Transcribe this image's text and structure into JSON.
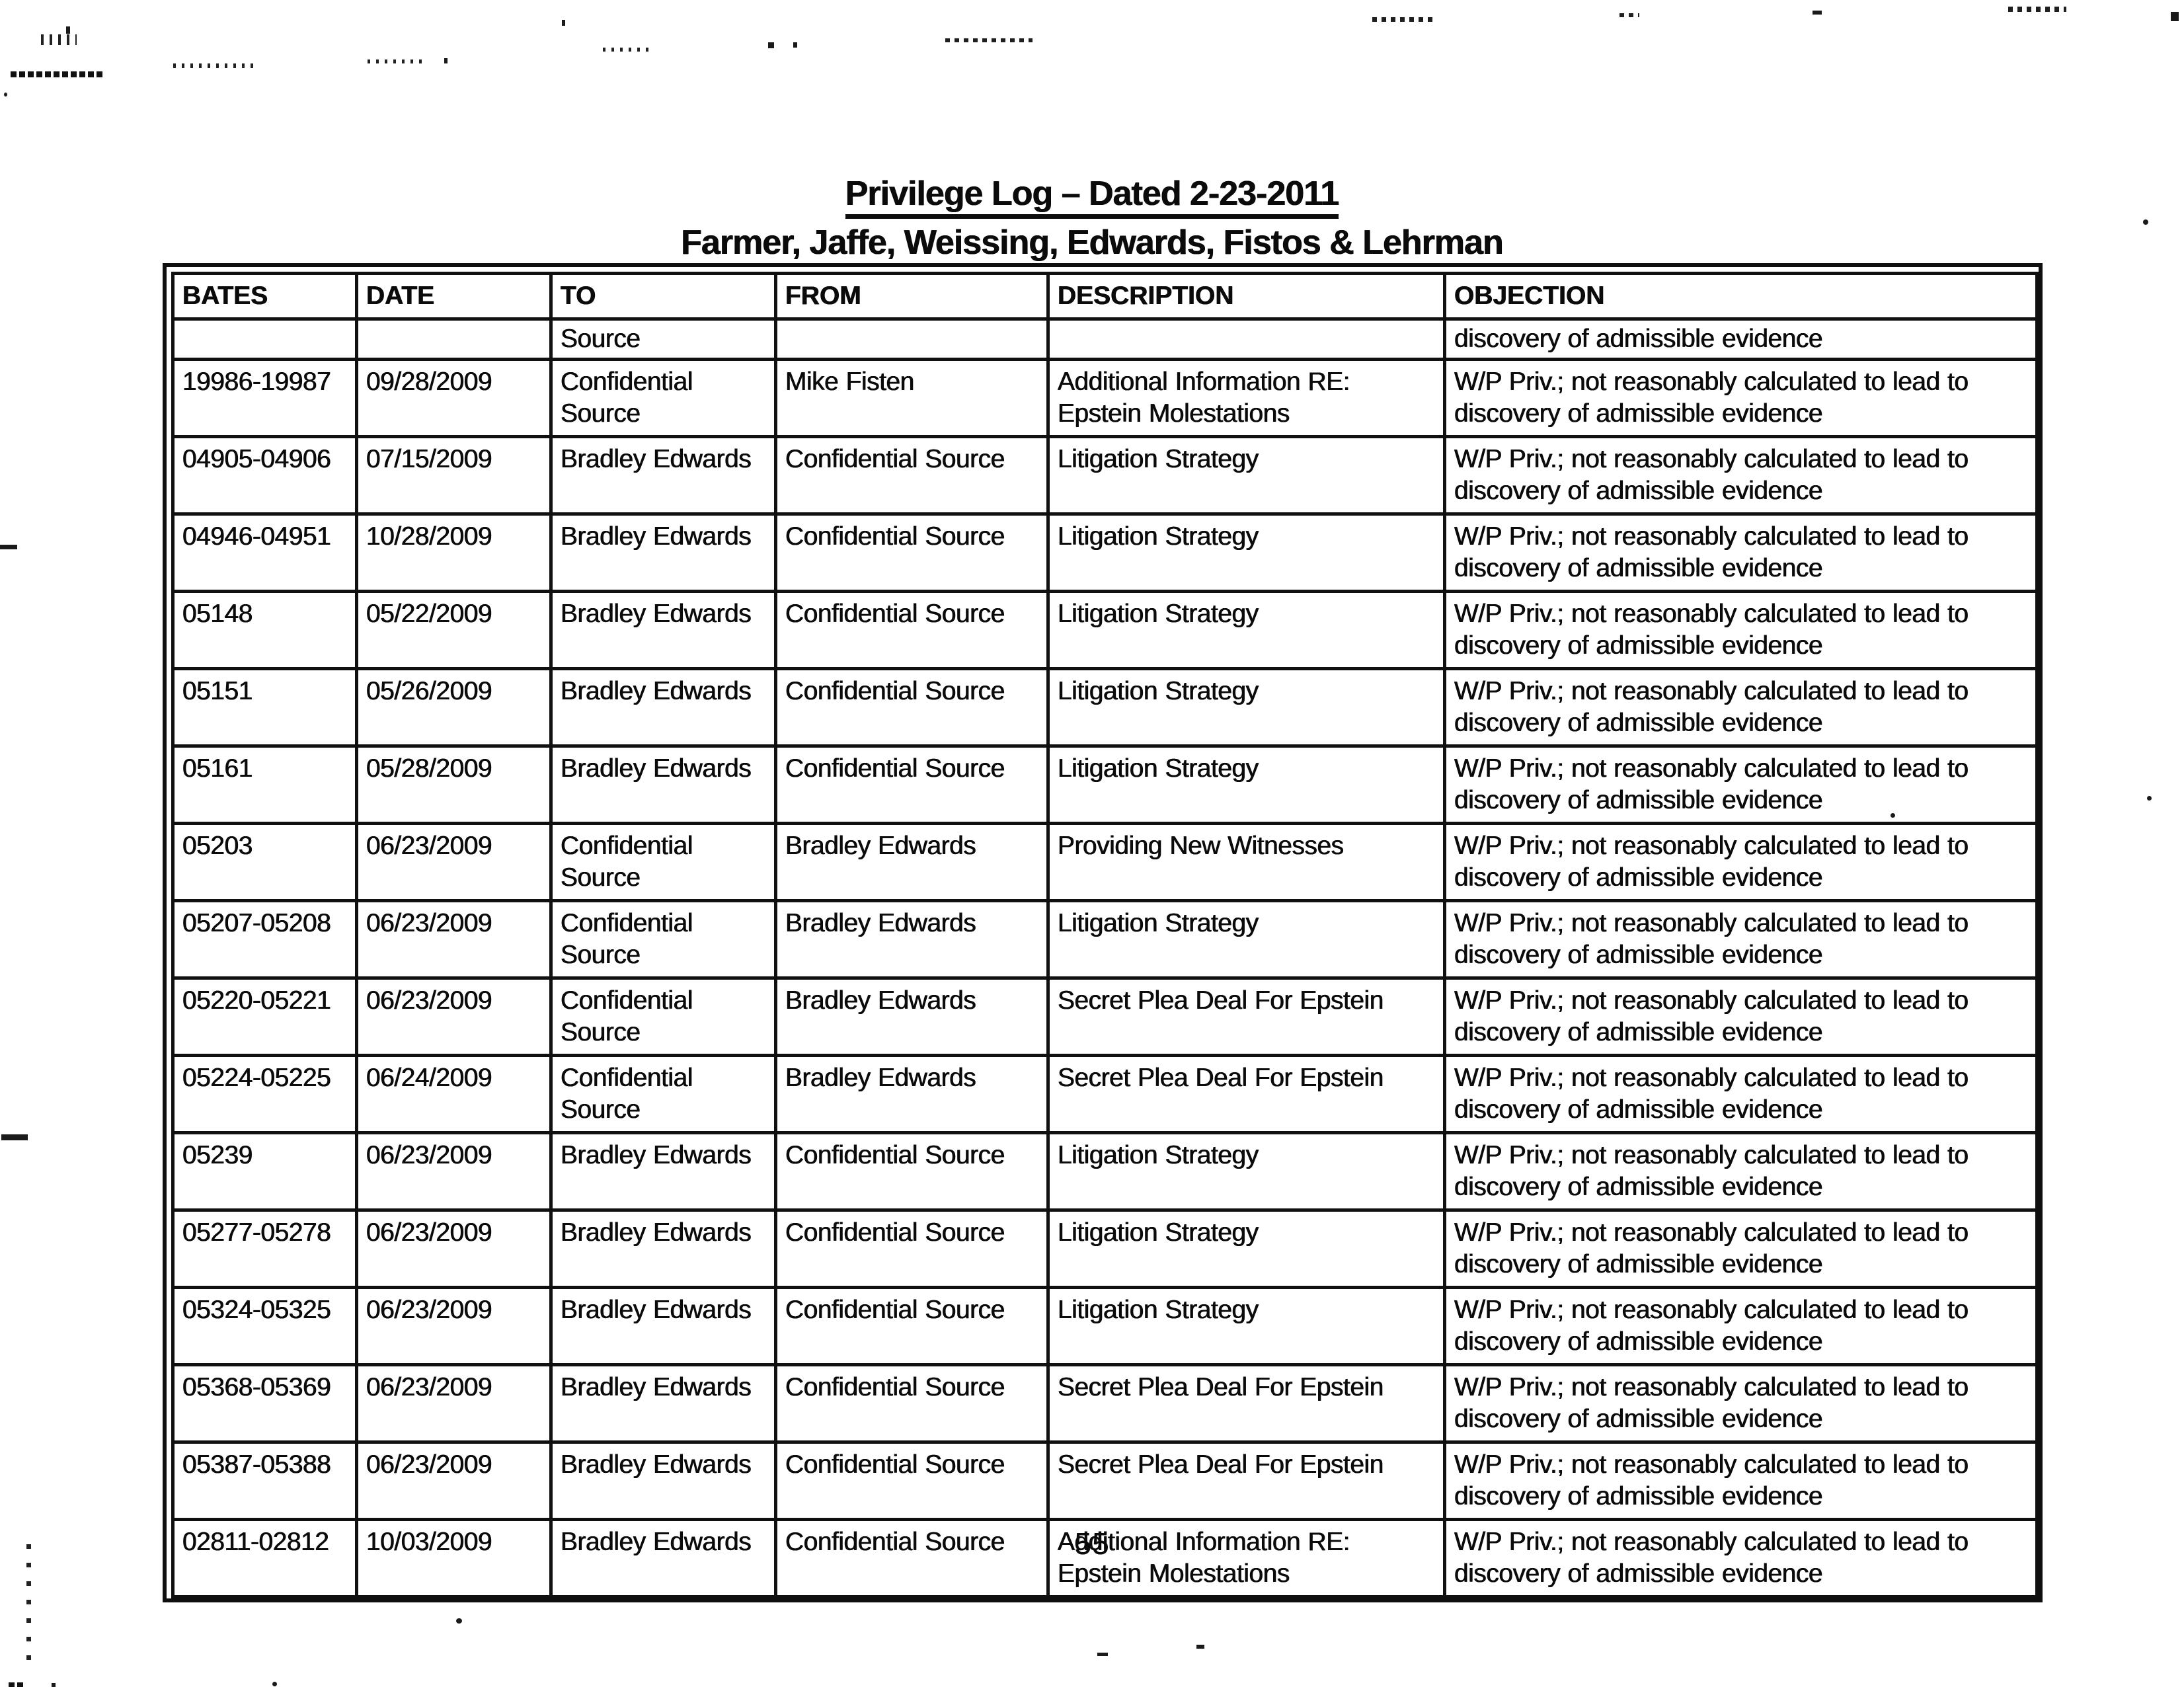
{
  "document": {
    "title_line1": "Privilege Log – Dated 2-23-2011",
    "title_line2": "Farmer, Jaffe, Weissing, Edwards, Fistos & Lehrman",
    "page_number": "55"
  },
  "table": {
    "columns": [
      "BATES",
      "DATE",
      "TO",
      "FROM",
      "DESCRIPTION",
      "OBJECTION"
    ],
    "continuation_row": {
      "bates": "",
      "date": "",
      "to": "Source",
      "from": "",
      "description": "",
      "objection": "discovery of admissible evidence"
    },
    "rows": [
      {
        "bates": "19986-19987",
        "date": "09/28/2009",
        "to": "Confidential Source",
        "from": "Mike Fisten",
        "description": "Additional Information RE: Epstein Molestations",
        "objection": "W/P Priv.; not reasonably calculated to lead to discovery of admissible evidence"
      },
      {
        "bates": "04905-04906",
        "date": "07/15/2009",
        "to": "Bradley Edwards",
        "from": "Confidential Source",
        "description": "Litigation Strategy",
        "objection": "W/P Priv.; not reasonably calculated to lead to discovery of admissible evidence"
      },
      {
        "bates": "04946-04951",
        "date": "10/28/2009",
        "to": "Bradley Edwards",
        "from": "Confidential Source",
        "description": "Litigation Strategy",
        "objection": "W/P Priv.; not reasonably calculated to lead to discovery of admissible evidence"
      },
      {
        "bates": "05148",
        "date": "05/22/2009",
        "to": "Bradley Edwards",
        "from": "Confidential Source",
        "description": "Litigation Strategy",
        "objection": "W/P Priv.; not reasonably calculated to lead to discovery of admissible evidence"
      },
      {
        "bates": "05151",
        "date": "05/26/2009",
        "to": "Bradley Edwards",
        "from": "Confidential Source",
        "description": "Litigation Strategy",
        "objection": "W/P Priv.; not reasonably calculated to lead to discovery of admissible evidence"
      },
      {
        "bates": "05161",
        "date": "05/28/2009",
        "to": "Bradley Edwards",
        "from": "Confidential Source",
        "description": "Litigation Strategy",
        "objection": "W/P Priv.; not reasonably calculated to lead to discovery of admissible evidence"
      },
      {
        "bates": "05203",
        "date": "06/23/2009",
        "to": "Confidential Source",
        "from": "Bradley Edwards",
        "description": "Providing New Witnesses",
        "objection": "W/P Priv.; not reasonably calculated to lead to discovery of admissible evidence"
      },
      {
        "bates": "05207-05208",
        "date": "06/23/2009",
        "to": "Confidential Source",
        "from": "Bradley Edwards",
        "description": "Litigation Strategy",
        "objection": "W/P Priv.; not reasonably calculated to lead to discovery of admissible evidence"
      },
      {
        "bates": "05220-05221",
        "date": "06/23/2009",
        "to": "Confidential Source",
        "from": "Bradley Edwards",
        "description": "Secret Plea Deal For Epstein",
        "objection": "W/P Priv.; not reasonably calculated to lead to discovery of admissible evidence"
      },
      {
        "bates": "05224-05225",
        "date": "06/24/2009",
        "to": "Confidential Source",
        "from": "Bradley Edwards",
        "description": "Secret Plea Deal For Epstein",
        "objection": "W/P Priv.; not reasonably calculated to lead to discovery of admissible evidence"
      },
      {
        "bates": "05239",
        "date": "06/23/2009",
        "to": "Bradley Edwards",
        "from": "Confidential Source",
        "description": "Litigation Strategy",
        "objection": "W/P Priv.; not reasonably calculated to lead to discovery of admissible evidence"
      },
      {
        "bates": "05277-05278",
        "date": "06/23/2009",
        "to": "Bradley Edwards",
        "from": "Confidential Source",
        "description": "Litigation Strategy",
        "objection": "W/P Priv.; not reasonably calculated to lead to discovery of admissible evidence"
      },
      {
        "bates": "05324-05325",
        "date": "06/23/2009",
        "to": "Bradley Edwards",
        "from": "Confidential Source",
        "description": "Litigation Strategy",
        "objection": "W/P Priv.; not reasonably calculated to lead to discovery of admissible evidence"
      },
      {
        "bates": "05368-05369",
        "date": "06/23/2009",
        "to": "Bradley Edwards",
        "from": "Confidential Source",
        "description": "Secret Plea Deal For Epstein",
        "objection": "W/P Priv.; not reasonably calculated to lead to discovery of admissible evidence"
      },
      {
        "bates": "05387-05388",
        "date": "06/23/2009",
        "to": "Bradley Edwards",
        "from": "Confidential Source",
        "description": "Secret Plea Deal For Epstein",
        "objection": "W/P Priv.; not reasonably calculated to lead to discovery of admissible evidence"
      },
      {
        "bates": "02811-02812",
        "date": "10/03/2009",
        "to": "Bradley Edwards",
        "from": "Confidential Source",
        "description": "Additional Information RE: Epstein Molestations",
        "objection": "W/P Priv.; not reasonably calculated to lead to discovery of admissible evidence"
      }
    ]
  }
}
